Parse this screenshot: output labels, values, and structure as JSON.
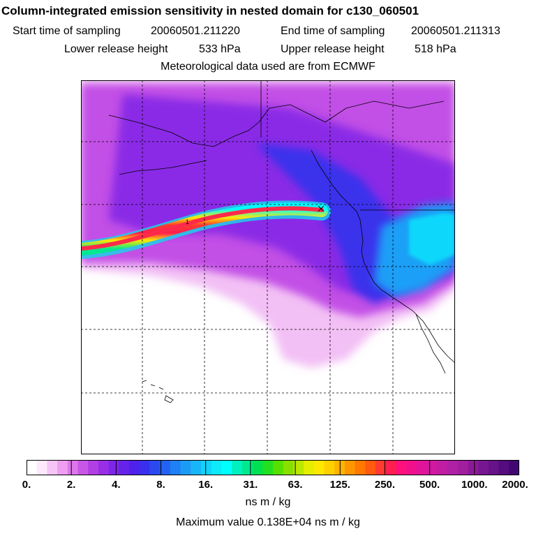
{
  "header": {
    "title": "Column-integrated emission sensitivity in nested domain for c130_060501",
    "start_label": "Start time of sampling",
    "start_value": "20060501.211220",
    "end_label": "End time of sampling",
    "end_value": "20060501.211313",
    "lower_label": "Lower release height",
    "lower_value": "533 hPa",
    "upper_label": "Upper release height",
    "upper_value": "518 hPa",
    "met_text": "Meteorological data used are from ECMWF"
  },
  "map": {
    "release_marker_label": "1"
  },
  "colorbar": {
    "tick_labels": [
      "0.",
      "2.",
      "4.",
      "8.",
      "16.",
      "31.",
      "63.",
      "125.",
      "250.",
      "500.",
      "1000.",
      "2000."
    ],
    "colors": [
      "#ffffff",
      "#fde8fd",
      "#f6c4f6",
      "#ee9ef0",
      "#dd77ea",
      "#c856e6",
      "#b13fe3",
      "#9a2ee6",
      "#7e25ea",
      "#6722ea",
      "#4f22ec",
      "#3a2fee",
      "#2a4af0",
      "#2263f2",
      "#1f7ff4",
      "#1c9bf6",
      "#18b6f8",
      "#12d2fa",
      "#0ceafc",
      "#00ffff",
      "#00f0c0",
      "#00e890",
      "#00e050",
      "#22e020",
      "#55e000",
      "#88e000",
      "#bbe800",
      "#e5ee00",
      "#ffe800",
      "#ffd000",
      "#ffb400",
      "#ff9600",
      "#ff7800",
      "#ff5a10",
      "#ff3a30",
      "#ff1e50",
      "#ff107a",
      "#f0108c",
      "#e0149a",
      "#d018a0",
      "#c01ca4",
      "#b020a4",
      "#a01ea0",
      "#8c1a98",
      "#781690",
      "#661288",
      "#540c7e",
      "#400870"
    ],
    "units": "ns m / kg"
  },
  "footer": {
    "max_label": "Maximum value",
    "max_value": "0.138E+04",
    "max_units": "ns m / kg"
  }
}
